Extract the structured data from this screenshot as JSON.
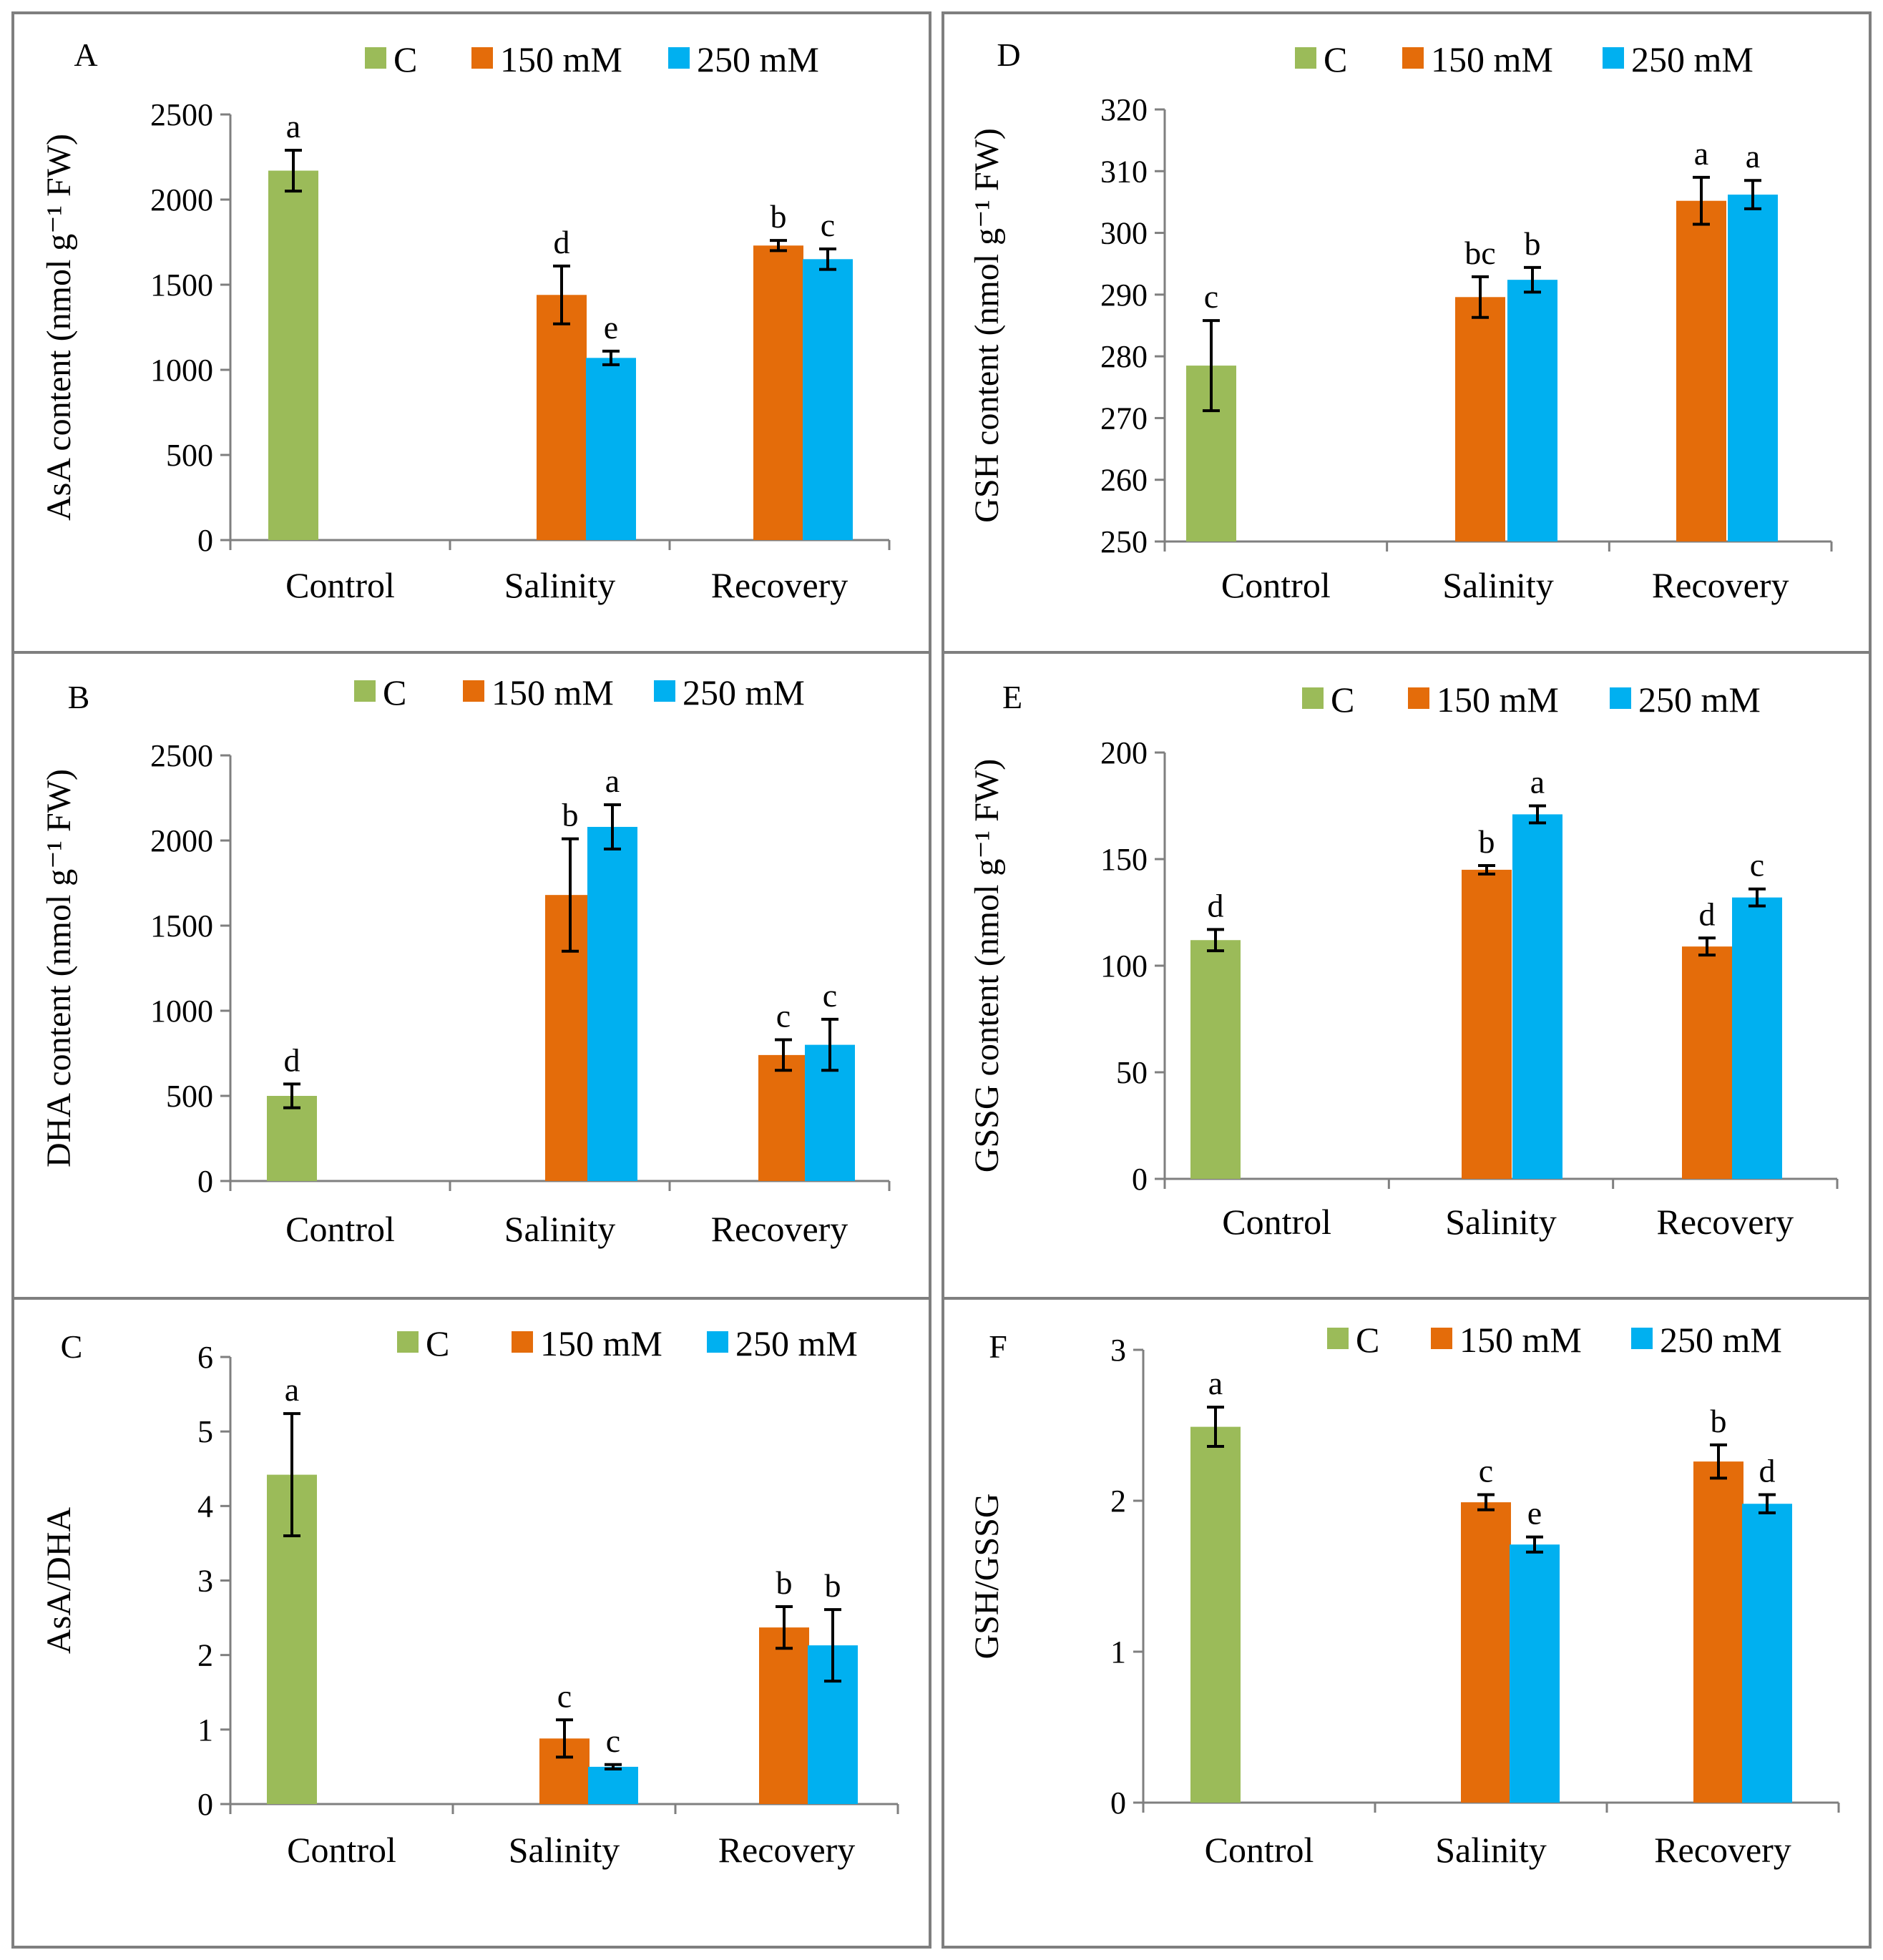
{
  "colors": {
    "C": "#9BBB59",
    "150 mM": "#E46C0A",
    "250 mM": "#00B0F0"
  },
  "chart_data": [
    {
      "panel": "A",
      "type": "bar",
      "ylabel": "AsA content (nmol g⁻¹ FW)",
      "categories": [
        "Control",
        "Salinity",
        "Recovery"
      ],
      "legend": [
        "C",
        "150 mM",
        "250 mM"
      ],
      "ylim": [
        0,
        2500
      ],
      "yticks": [
        0,
        500,
        1000,
        1500,
        2000,
        2500
      ],
      "ytick_labels": [
        "0",
        "500",
        "1000",
        "1500",
        "2000",
        "2500"
      ],
      "series": [
        {
          "name": "C",
          "values": [
            2170,
            null,
            null
          ],
          "errors": [
            120,
            null,
            null
          ],
          "letters": [
            "a",
            null,
            null
          ]
        },
        {
          "name": "150 mM",
          "values": [
            null,
            1440,
            1730
          ],
          "errors": [
            null,
            170,
            30
          ],
          "letters": [
            null,
            "d",
            "b"
          ]
        },
        {
          "name": "250 mM",
          "values": [
            null,
            1070,
            1650
          ],
          "errors": [
            null,
            40,
            60
          ],
          "letters": [
            null,
            "e",
            "c"
          ]
        }
      ]
    },
    {
      "panel": "B",
      "type": "bar",
      "ylabel": "DHA content (nmol g⁻¹ FW)",
      "categories": [
        "Control",
        "Salinity",
        "Recovery"
      ],
      "legend": [
        "C",
        "150 mM",
        "250 mM"
      ],
      "ylim": [
        0,
        2500
      ],
      "yticks": [
        0,
        500,
        1000,
        1500,
        2000,
        2500
      ],
      "ytick_labels": [
        "0",
        "500",
        "1000",
        "1500",
        "2000",
        "2500"
      ],
      "series": [
        {
          "name": "C",
          "values": [
            500,
            null,
            null
          ],
          "errors": [
            70,
            null,
            null
          ],
          "letters": [
            "d",
            null,
            null
          ]
        },
        {
          "name": "150 mM",
          "values": [
            null,
            1680,
            740
          ],
          "errors": [
            null,
            330,
            90
          ],
          "letters": [
            null,
            "b",
            "c"
          ]
        },
        {
          "name": "250 mM",
          "values": [
            null,
            2080,
            800
          ],
          "errors": [
            null,
            130,
            150
          ],
          "letters": [
            null,
            "a",
            "c"
          ]
        }
      ]
    },
    {
      "panel": "C",
      "type": "bar",
      "ylabel": "AsA/DHA",
      "categories": [
        "Control",
        "Salinity",
        "Recovery"
      ],
      "legend": [
        "C",
        "150 mM",
        "250 mM"
      ],
      "ylim": [
        0,
        6
      ],
      "yticks": [
        0,
        1,
        2,
        3,
        4,
        5,
        6
      ],
      "ytick_labels": [
        "0",
        "1",
        "2",
        "3",
        "4",
        "5",
        "6"
      ],
      "series": [
        {
          "name": "C",
          "values": [
            4.42,
            null,
            null
          ],
          "errors": [
            0.82,
            null,
            null
          ],
          "letters": [
            "a",
            null,
            null
          ]
        },
        {
          "name": "150 mM",
          "values": [
            null,
            0.88,
            2.37
          ],
          "errors": [
            null,
            0.25,
            0.28
          ],
          "letters": [
            null,
            "c",
            "b"
          ]
        },
        {
          "name": "250 mM",
          "values": [
            null,
            0.5,
            2.13
          ],
          "errors": [
            null,
            0.03,
            0.48
          ],
          "letters": [
            null,
            "c",
            "b"
          ]
        }
      ]
    },
    {
      "panel": "D",
      "type": "bar",
      "ylabel": "GSH content (nmol g⁻¹ FW)",
      "categories": [
        "Control",
        "Salinity",
        "Recovery"
      ],
      "legend": [
        "C",
        "150 mM",
        "250 mM"
      ],
      "ylim": [
        250,
        320
      ],
      "yticks": [
        250,
        260,
        270,
        280,
        290,
        300,
        310,
        320
      ],
      "ytick_labels": [
        "250",
        "260",
        "270",
        "280",
        "290",
        "300",
        "310",
        "320"
      ],
      "series": [
        {
          "name": "C",
          "values": [
            278.5,
            null,
            null
          ],
          "errors": [
            7.3,
            null,
            null
          ],
          "letters": [
            "c",
            null,
            null
          ]
        },
        {
          "name": "150 mM",
          "values": [
            null,
            289.6,
            305.2
          ],
          "errors": [
            null,
            3.3,
            3.8
          ],
          "letters": [
            null,
            "bc",
            "a"
          ]
        },
        {
          "name": "250 mM",
          "values": [
            null,
            292.4,
            306.2
          ],
          "errors": [
            null,
            2.0,
            2.3
          ],
          "letters": [
            null,
            "b",
            "a"
          ]
        }
      ]
    },
    {
      "panel": "E",
      "type": "bar",
      "ylabel": "GSSG content (nmol g⁻¹ FW)",
      "categories": [
        "Control",
        "Salinity",
        "Recovery"
      ],
      "legend": [
        "C",
        "150 mM",
        "250 mM"
      ],
      "ylim": [
        0,
        200
      ],
      "yticks": [
        0,
        50,
        100,
        150,
        200
      ],
      "ytick_labels": [
        "0",
        "50",
        "100",
        "150",
        "200"
      ],
      "series": [
        {
          "name": "C",
          "values": [
            112,
            null,
            null
          ],
          "errors": [
            5,
            null,
            null
          ],
          "letters": [
            "d",
            null,
            null
          ]
        },
        {
          "name": "150 mM",
          "values": [
            null,
            145,
            109
          ],
          "errors": [
            null,
            2,
            4
          ],
          "letters": [
            null,
            "b",
            "d"
          ]
        },
        {
          "name": "250 mM",
          "values": [
            null,
            171,
            132
          ],
          "errors": [
            null,
            4,
            4
          ],
          "letters": [
            null,
            "a",
            "c"
          ]
        }
      ]
    },
    {
      "panel": "F",
      "type": "bar",
      "ylabel": "GSH/GSSG",
      "categories": [
        "Control",
        "Salinity",
        "Recovery"
      ],
      "legend": [
        "C",
        "150 mM",
        "250 mM"
      ],
      "ylim": [
        0,
        3
      ],
      "yticks": [
        0,
        1,
        2,
        3
      ],
      "ytick_labels": [
        "0",
        "1",
        "2",
        "3"
      ],
      "series": [
        {
          "name": "C",
          "values": [
            2.49,
            null,
            null
          ],
          "errors": [
            0.13,
            null,
            null
          ],
          "letters": [
            "a",
            null,
            null
          ]
        },
        {
          "name": "150 mM",
          "values": [
            null,
            1.99,
            2.26
          ],
          "errors": [
            null,
            0.05,
            0.11
          ],
          "letters": [
            null,
            "c",
            "b"
          ]
        },
        {
          "name": "250 mM",
          "values": [
            null,
            1.71,
            1.98
          ],
          "errors": [
            null,
            0.05,
            0.06
          ],
          "letters": [
            null,
            "e",
            "d"
          ]
        }
      ]
    }
  ]
}
